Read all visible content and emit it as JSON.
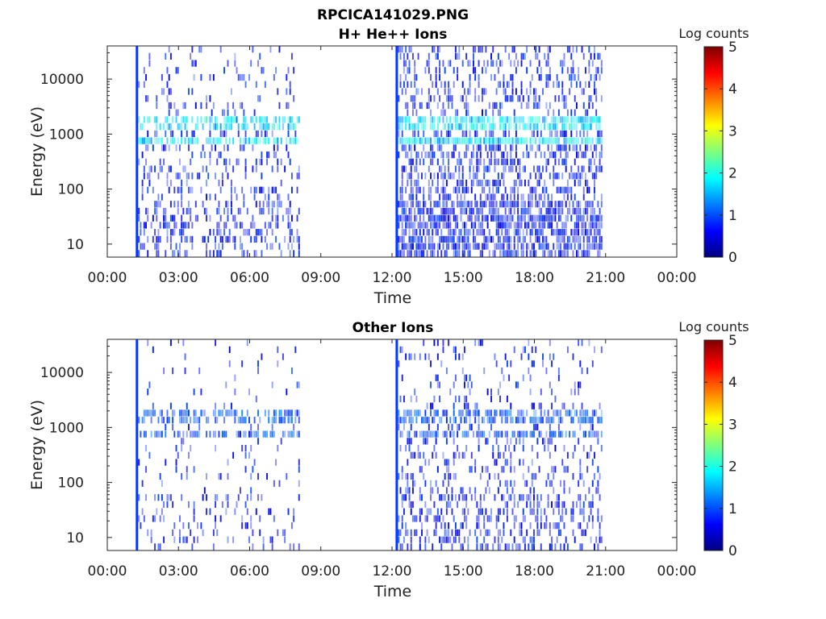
{
  "figure_title": "RPCICA141029.PNG",
  "colormap": [
    "#00007f",
    "#0000ff",
    "#007fff",
    "#00ffff",
    "#7fff7f",
    "#ffff00",
    "#ff7f00",
    "#ff0000",
    "#7f0000"
  ],
  "chart_data": [
    {
      "type": "heatmap",
      "title": "H+ He++ Ions",
      "xlabel": "Time",
      "ylabel": "Energy (eV)",
      "x_ticks": [
        "00:00",
        "03:00",
        "06:00",
        "09:00",
        "12:00",
        "15:00",
        "18:00",
        "21:00",
        "00:00"
      ],
      "xlim_hours": [
        0,
        24
      ],
      "y_scale": "log",
      "y_ticks": [
        "10",
        "100",
        "1000",
        "10000"
      ],
      "ylim": [
        5.8,
        40000
      ],
      "colorbar": {
        "label": "Log counts",
        "ticks": [
          "0",
          "1",
          "2",
          "3",
          "4",
          "5"
        ],
        "range": [
          0,
          5
        ]
      },
      "data_intervals_hours": [
        [
          1.25,
          8.1
        ],
        [
          12.2,
          20.85
        ]
      ],
      "bright_bands_eV": [
        700,
        1600
      ],
      "max_log_counts": 2
    },
    {
      "type": "heatmap",
      "title": "Other Ions",
      "xlabel": "Time",
      "ylabel": "Energy (eV)",
      "x_ticks": [
        "00:00",
        "03:00",
        "06:00",
        "09:00",
        "12:00",
        "15:00",
        "18:00",
        "21:00",
        "00:00"
      ],
      "xlim_hours": [
        0,
        24
      ],
      "y_scale": "log",
      "y_ticks": [
        "10",
        "100",
        "1000",
        "10000"
      ],
      "ylim": [
        5.8,
        40000
      ],
      "colorbar": {
        "label": "Log counts",
        "ticks": [
          "0",
          "1",
          "2",
          "3",
          "4",
          "5"
        ],
        "range": [
          0,
          5
        ]
      },
      "data_intervals_hours": [
        [
          1.25,
          8.1
        ],
        [
          12.2,
          20.85
        ]
      ],
      "bright_bands_eV": [
        700,
        1600
      ],
      "max_log_counts": 1
    }
  ]
}
